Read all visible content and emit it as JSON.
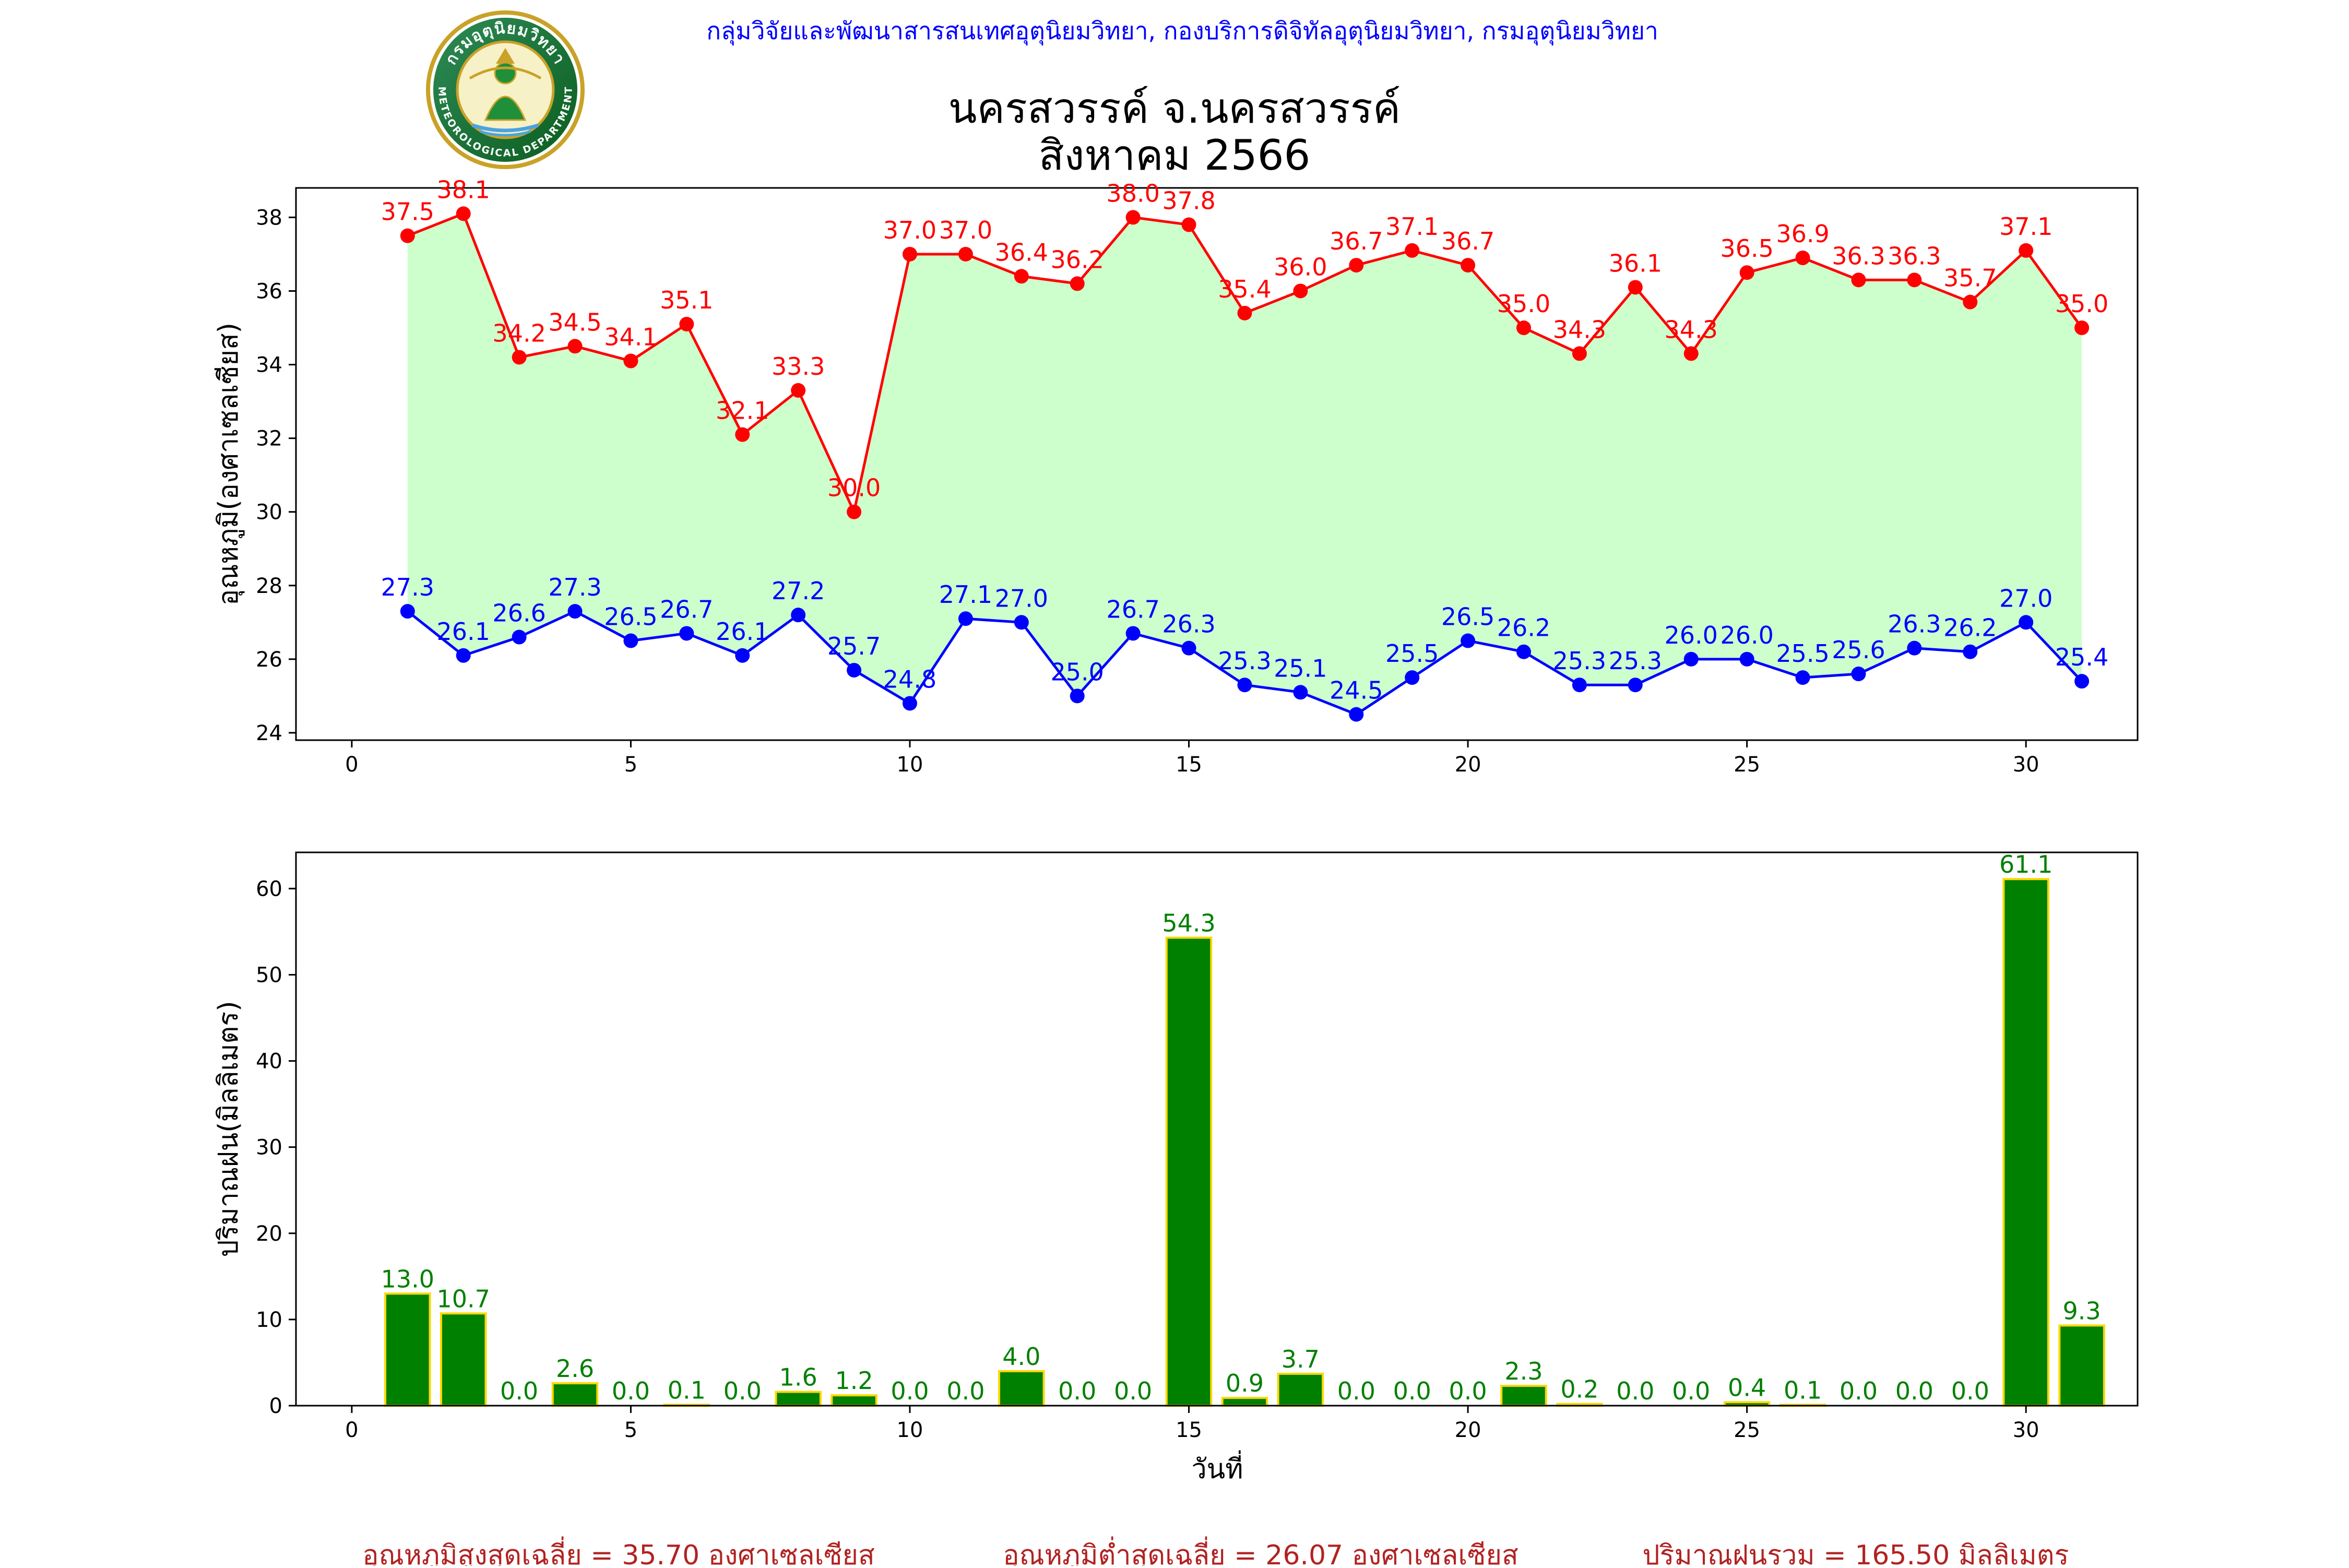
{
  "header": {
    "agency": "กลุ่มวิจัยและพัฒนาสารสนเทศอุตุนิยมวิทยา, กองบริการดิจิทัลอุตุนิยมวิทยา, กรมอุตุนิยมวิทยา",
    "station": "นครสวรรค์  จ.นครสวรรค์",
    "period": "สิงหาคม 2566",
    "logo_text_top": "กรมอุตุนิยมวิทยา",
    "logo_text_bottom": "METEOROLOGICAL DEPARTMENT"
  },
  "footer": {
    "max_avg": "อุณหภูมิสูงสุดเฉลี่ย = 35.70 องศาเซลเซียส",
    "min_avg": "อุณหภูมิต่ำสุดเฉลี่ย = 26.07 องศาเซลเซียส",
    "rain_total": "ปริมาณฝนรวม = 165.50 มิลลิเมตร"
  },
  "colors": {
    "max_line": "#ff0000",
    "min_line": "#0000ff",
    "fill": "#ccffcc",
    "bar": "#008000",
    "bar_edge": "#ffd700",
    "bar_label": "#008000",
    "agency_text": "#0000ff",
    "footer_text": "#b22222"
  },
  "chart_data": [
    {
      "type": "line",
      "ylabel": "อุณหภูมิ(องศาเซลเซียส)",
      "xlim": [
        -1,
        32
      ],
      "ylim": [
        23.8,
        38.8
      ],
      "xticks": [
        0,
        5,
        10,
        15,
        20,
        25,
        30
      ],
      "yticks": [
        24,
        26,
        28,
        30,
        32,
        34,
        36,
        38
      ],
      "x": [
        1,
        2,
        3,
        4,
        5,
        6,
        7,
        8,
        9,
        10,
        11,
        12,
        13,
        14,
        15,
        16,
        17,
        18,
        19,
        20,
        21,
        22,
        23,
        24,
        25,
        26,
        27,
        28,
        29,
        30,
        31
      ],
      "series": [
        {
          "key": "max",
          "values": [
            37.5,
            38.1,
            34.2,
            34.5,
            34.1,
            35.1,
            32.1,
            33.3,
            30.0,
            37.0,
            37.0,
            36.4,
            36.2,
            38.0,
            37.8,
            35.4,
            36.0,
            36.7,
            37.1,
            36.7,
            35.0,
            34.3,
            36.1,
            34.3,
            36.5,
            36.9,
            36.3,
            36.3,
            35.7,
            37.1,
            35.0
          ]
        },
        {
          "key": "min",
          "values": [
            27.3,
            26.1,
            26.6,
            27.3,
            26.5,
            26.7,
            26.1,
            27.2,
            25.7,
            24.8,
            27.1,
            27.0,
            25.0,
            26.7,
            26.3,
            25.3,
            25.1,
            24.5,
            25.5,
            26.5,
            26.2,
            25.3,
            25.3,
            26.0,
            26.0,
            25.5,
            25.6,
            26.3,
            26.2,
            27.0,
            25.4
          ]
        }
      ],
      "fill_between": true
    },
    {
      "type": "bar",
      "xlabel": "วันที่",
      "ylabel": "ปริมาณฝน(มิลลิเมตร)",
      "xlim": [
        -1,
        32
      ],
      "ylim": [
        0,
        64.2
      ],
      "xticks": [
        0,
        5,
        10,
        15,
        20,
        25,
        30
      ],
      "yticks": [
        0,
        10,
        20,
        30,
        40,
        50,
        60
      ],
      "categories": [
        1,
        2,
        3,
        4,
        5,
        6,
        7,
        8,
        9,
        10,
        11,
        12,
        13,
        14,
        15,
        16,
        17,
        18,
        19,
        20,
        21,
        22,
        23,
        24,
        25,
        26,
        27,
        28,
        29,
        30,
        31
      ],
      "values": [
        13.0,
        10.7,
        0.0,
        2.6,
        0.0,
        0.1,
        0.0,
        1.6,
        1.2,
        0.0,
        0.0,
        4.0,
        0.0,
        0.0,
        54.3,
        0.9,
        3.7,
        0.0,
        0.0,
        0.0,
        2.3,
        0.2,
        0.0,
        0.0,
        0.4,
        0.1,
        0.0,
        0.0,
        0.0,
        61.1,
        9.3
      ]
    }
  ]
}
